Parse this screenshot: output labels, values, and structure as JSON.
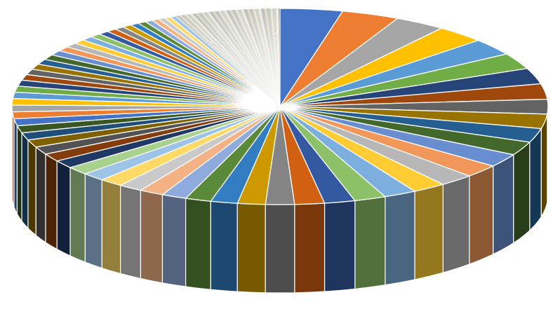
{
  "chart_data": {
    "type": "pie",
    "variant": "3d-pie",
    "title": "",
    "legend": "none",
    "data_labels": "none",
    "start_angle_deg": 90,
    "direction": "clockwise",
    "major_slice_values": [
      6.5,
      6.0,
      5.3,
      5.1,
      4.8,
      4.6,
      4.5,
      4.4,
      4.2,
      4.1,
      4.0,
      3.9,
      3.8,
      3.7,
      3.6,
      3.5,
      3.4,
      3.3,
      3.2,
      3.1,
      3.0,
      2.9,
      2.8,
      2.7,
      2.6,
      2.55,
      2.5,
      2.45,
      2.4,
      2.35,
      2.3,
      2.25,
      2.2,
      2.15,
      2.1,
      2.05,
      2.0,
      1.95,
      1.9,
      1.85,
      1.8,
      1.75,
      1.7,
      1.65,
      1.6,
      1.55,
      1.5,
      1.45,
      1.4,
      1.35,
      1.3,
      1.25,
      1.2,
      1.15,
      1.1,
      1.05,
      1.0,
      0.95,
      0.9,
      0.85,
      0.8,
      0.75,
      0.7,
      0.65,
      0.6
    ],
    "tail_slice_count": 220,
    "tail_slice_value": 0.05,
    "palette": [
      "#4472C4",
      "#ED7D31",
      "#A5A5A5",
      "#FFC000",
      "#5B9BD5",
      "#70AD47",
      "#264478",
      "#9E480E",
      "#636363",
      "#997300",
      "#255E91",
      "#43682B",
      "#698ED0",
      "#F1975A",
      "#B7B7B7",
      "#FFCD33",
      "#7CAFDD",
      "#8CC168",
      "#335AA1",
      "#D26012",
      "#848484",
      "#CC9A00",
      "#327DC2",
      "#5A8A39",
      "#8FAADC",
      "#F4B183",
      "#C9C9C9",
      "#FFD966",
      "#9DC3E6",
      "#A9D18E",
      "#203864",
      "#843C0C",
      "#525252",
      "#7F6000",
      "#1F4E79",
      "#385723"
    ]
  }
}
